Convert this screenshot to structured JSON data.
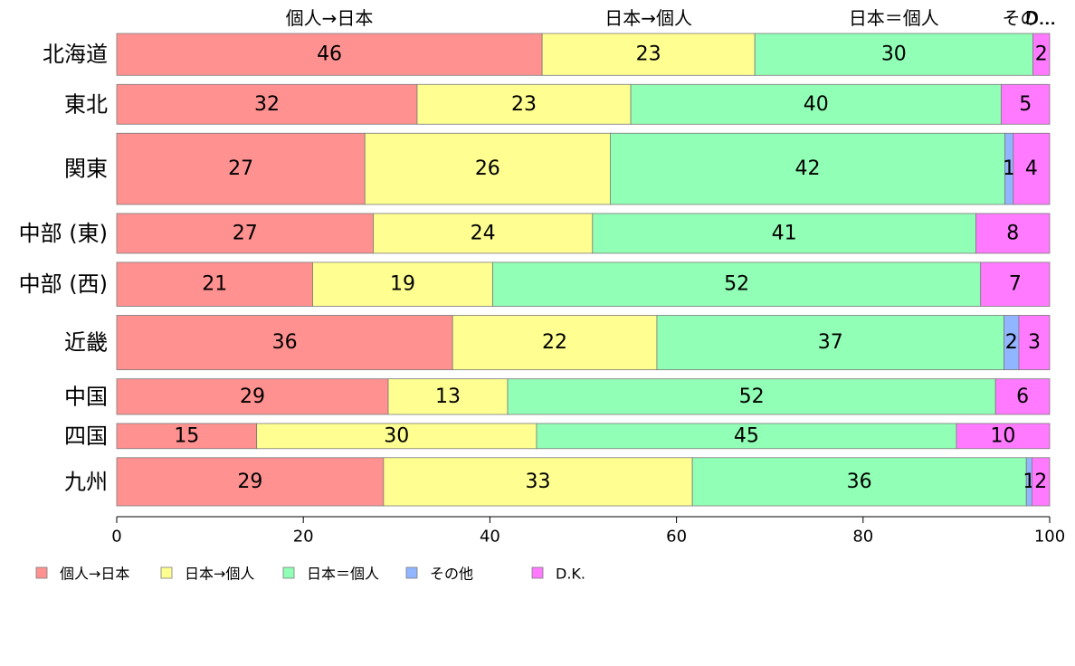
{
  "chart_data": {
    "type": "bar",
    "orientation": "horizontal",
    "stacked": true,
    "title": "",
    "xlabel": "",
    "ylabel": "",
    "xlim": [
      0,
      100
    ],
    "x_ticks": [
      0,
      20,
      40,
      60,
      80,
      100
    ],
    "grid": false,
    "legend_position": "bottom",
    "column_headers": [
      "個人→日本",
      "日本→個人",
      "日本＝個人",
      "その...",
      "D..."
    ],
    "categories": [
      "北海道",
      "東北",
      "関東",
      "中部 (東)",
      "中部 (西)",
      "近畿",
      "中国",
      "四国",
      "九州"
    ],
    "series": [
      {
        "name": "個人→日本",
        "color": "#FF9191",
        "values": [
          45.6,
          32.2,
          26.6,
          27.5,
          21.0,
          36.0,
          29.1,
          15.0,
          28.6
        ],
        "labels": [
          "46",
          "32",
          "27",
          "27",
          "21",
          "36",
          "29",
          "15",
          "29"
        ]
      },
      {
        "name": "日本→個人",
        "color": "#FFFF91",
        "values": [
          22.8,
          22.9,
          26.3,
          23.5,
          19.3,
          21.9,
          12.8,
          30.0,
          33.1
        ],
        "labels": [
          "23",
          "23",
          "26",
          "24",
          "19",
          "22",
          "13",
          "30",
          "33"
        ]
      },
      {
        "name": "日本＝個人",
        "color": "#91FFB5",
        "values": [
          29.8,
          39.7,
          42.3,
          41.1,
          52.3,
          37.2,
          52.3,
          45.0,
          35.8
        ],
        "labels": [
          "30",
          "40",
          "42",
          "41",
          "52",
          "37",
          "52",
          "45",
          "36"
        ]
      },
      {
        "name": "その他",
        "color": "#91B5FF",
        "values": [
          0.0,
          0.0,
          0.9,
          0.0,
          0.0,
          1.6,
          0.0,
          0.0,
          0.6
        ],
        "labels": [
          "",
          "",
          "1",
          "",
          "",
          "2",
          "",
          "",
          "1"
        ]
      },
      {
        "name": "D.K.",
        "color": "#FF7AFF",
        "values": [
          1.8,
          5.2,
          3.9,
          7.9,
          7.4,
          3.3,
          5.8,
          10.0,
          1.9
        ],
        "labels": [
          "2",
          "5",
          "4",
          "8",
          "7",
          "3",
          "6",
          "10",
          "2"
        ]
      }
    ],
    "row_weights": [
      1.0,
      0.95,
      1.7,
      0.95,
      1.05,
      1.3,
      0.85,
      0.6,
      1.15
    ]
  }
}
